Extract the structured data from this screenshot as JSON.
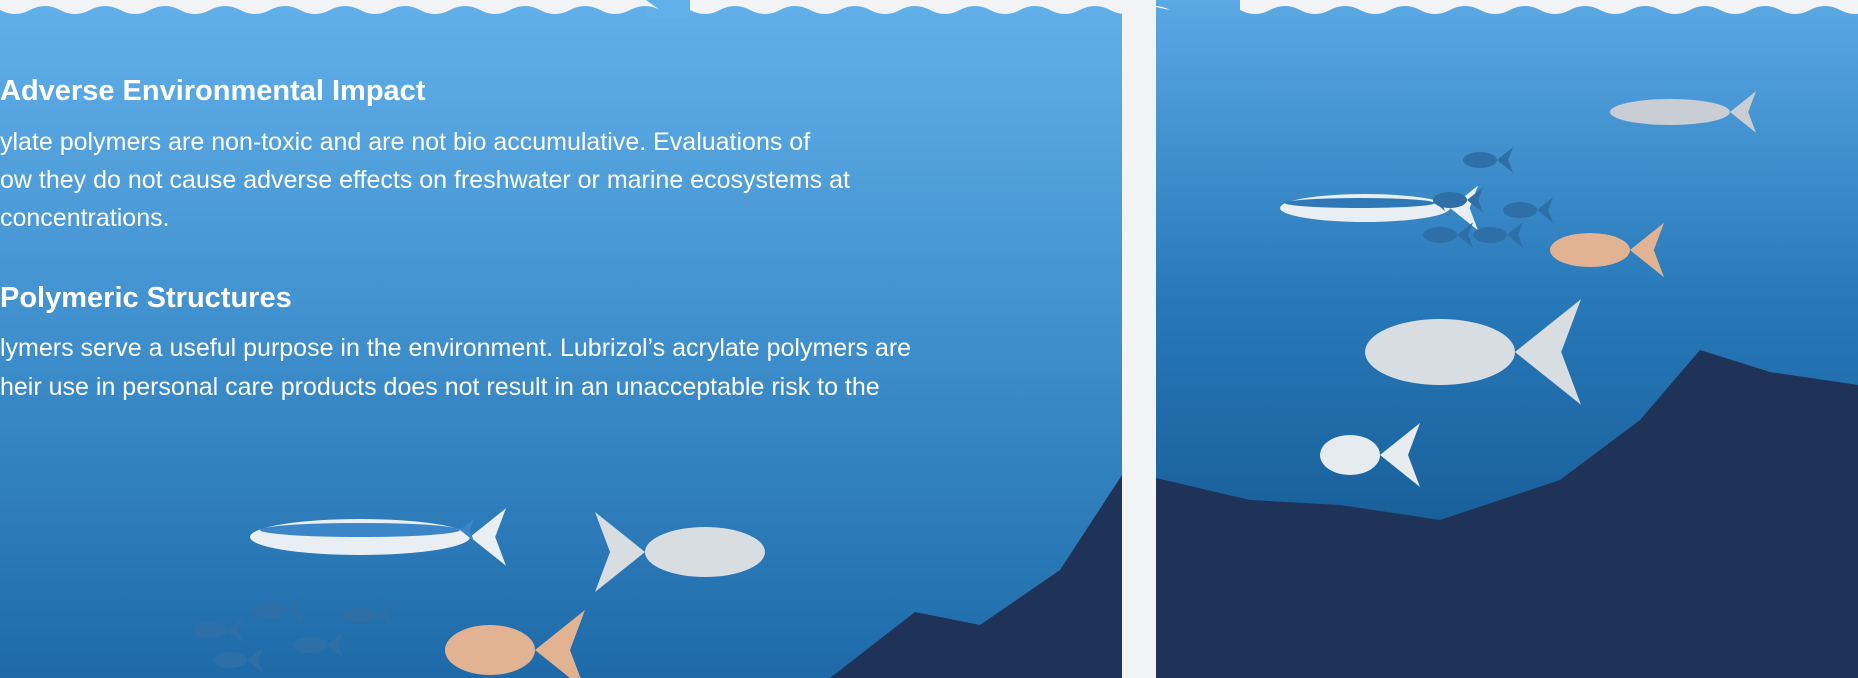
{
  "sections": [
    {
      "heading": "Adverse Environmental Impact",
      "lines": [
        "ylate polymers are non-toxic and are not bio accumulative. Evaluations of",
        "ow they do not cause adverse effects on freshwater or marine ecosystems at",
        " concentrations."
      ]
    },
    {
      "heading": "Polymeric Structures",
      "lines": [
        "lymers serve a useful purpose in the environment. Lubrizol’s acrylate polymers are",
        "heir use in personal care products does not result in an unacceptable risk to the"
      ]
    }
  ]
}
